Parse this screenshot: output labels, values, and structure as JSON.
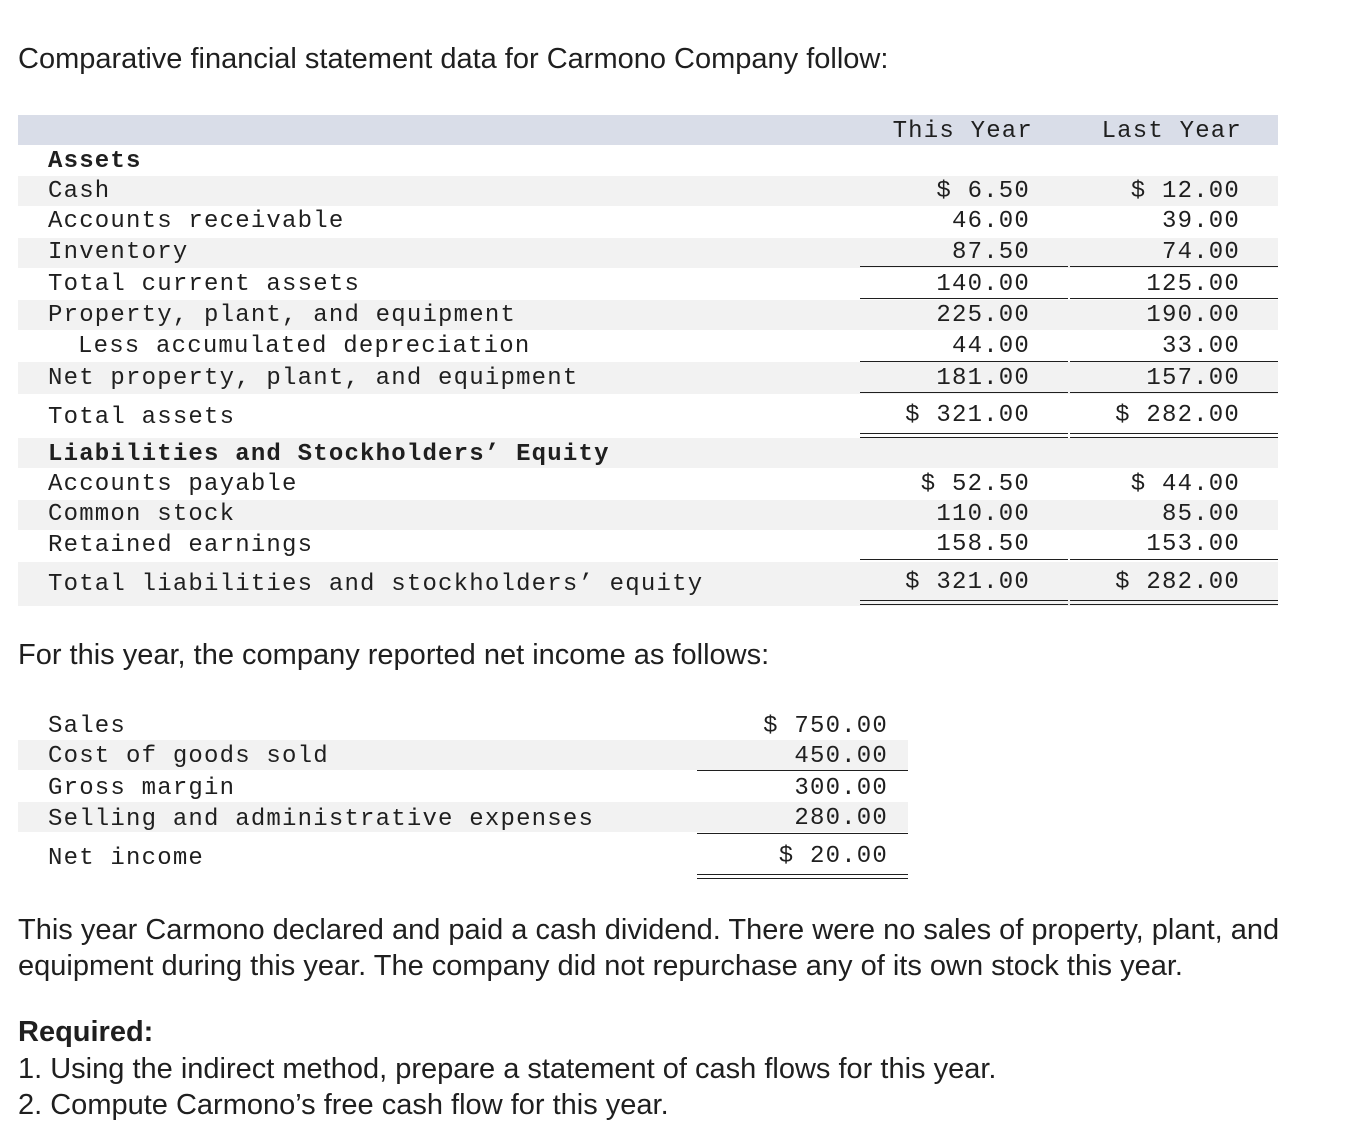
{
  "intro": "Comparative financial statement data for Carmono Company follow:",
  "balance_sheet": {
    "col_this_year": "This Year",
    "col_last_year": "Last Year",
    "assets_heading": "Assets",
    "rows": [
      {
        "label": "Cash",
        "this": "$ 6.50",
        "last": "$ 12.00"
      },
      {
        "label": "Accounts receivable",
        "this": "46.00",
        "last": "39.00"
      },
      {
        "label": "Inventory",
        "this": "87.50",
        "last": "74.00"
      },
      {
        "label": "Total current assets",
        "this": "140.00",
        "last": "125.00"
      },
      {
        "label": "Property, plant, and equipment",
        "this": "225.00",
        "last": "190.00"
      },
      {
        "label": "Less accumulated depreciation",
        "this": "44.00",
        "last": "33.00"
      },
      {
        "label": "Net property, plant, and equipment",
        "this": "181.00",
        "last": "157.00"
      },
      {
        "label": "Total assets",
        "this": "$ 321.00",
        "last": "$ 282.00"
      }
    ],
    "liab_heading": "Liabilities and Stockholders’ Equity",
    "liab_rows": [
      {
        "label": "Accounts payable",
        "this": "$ 52.50",
        "last": "$ 44.00"
      },
      {
        "label": "Common stock",
        "this": "110.00",
        "last": "85.00"
      },
      {
        "label": "Retained earnings",
        "this": "158.50",
        "last": "153.00"
      },
      {
        "label": "Total liabilities and stockholders’ equity",
        "this": "$ 321.00",
        "last": "$ 282.00"
      }
    ]
  },
  "income_intro": "For this year, the company reported net income as follows:",
  "income_statement": [
    {
      "label": "Sales",
      "value": "$ 750.00"
    },
    {
      "label": "Cost of goods sold",
      "value": "450.00"
    },
    {
      "label": "Gross margin",
      "value": "300.00"
    },
    {
      "label": "Selling and administrative expenses",
      "value": "280.00"
    },
    {
      "label": "Net income",
      "value": "$ 20.00"
    }
  ],
  "note": "This year Carmono declared and paid a cash dividend. There were no sales of property, plant, and equipment during this year. The company did not repurchase any of its own stock this year.",
  "required": {
    "heading": "Required:",
    "items": [
      "1. Using the indirect method, prepare a statement of cash flows for this year.",
      "2. Compute Carmono’s free cash flow for this year."
    ]
  }
}
